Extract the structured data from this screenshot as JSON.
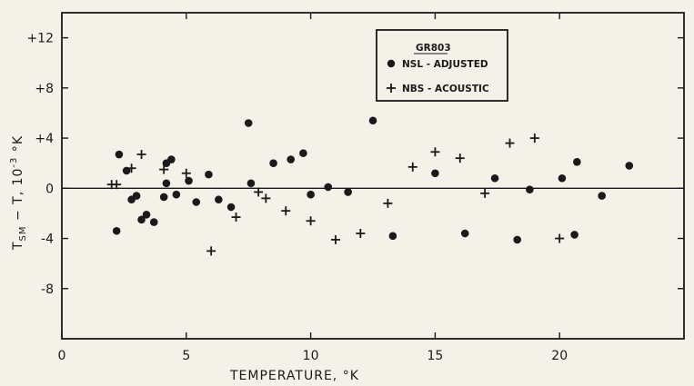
{
  "chart_data": {
    "type": "scatter",
    "title": "",
    "xlabel": "TEMPERATURE, °K",
    "ylabel": "T_SM − T, 10⁻³ °K",
    "xlim": [
      0,
      25
    ],
    "ylim": [
      -12,
      14
    ],
    "xticks": [
      0,
      5,
      10,
      15,
      20
    ],
    "xtick_labels": [
      "0",
      "5",
      "10",
      "15",
      "20"
    ],
    "yticks": [
      12,
      8,
      4,
      0,
      -4,
      -8
    ],
    "ytick_labels": [
      "+12",
      "+8",
      "+4",
      "0",
      "-4",
      "-8"
    ],
    "grid": false,
    "zero_line": true,
    "legend": {
      "title": "GR803",
      "placement": "top-center",
      "entries": [
        "NSL - ADJUSTED",
        "NBS - ACOUSTIC"
      ]
    },
    "series": [
      {
        "name": "NSL - ADJUSTED",
        "marker": "circle",
        "points": [
          [
            2.2,
            -3.4
          ],
          [
            2.3,
            2.7
          ],
          [
            2.6,
            1.4
          ],
          [
            2.8,
            -0.9
          ],
          [
            3.0,
            -0.6
          ],
          [
            3.2,
            -2.5
          ],
          [
            3.4,
            -2.1
          ],
          [
            3.7,
            -2.7
          ],
          [
            4.1,
            -0.7
          ],
          [
            4.2,
            0.4
          ],
          [
            4.2,
            2.0
          ],
          [
            4.4,
            2.3
          ],
          [
            4.6,
            -0.5
          ],
          [
            5.1,
            0.6
          ],
          [
            5.4,
            -1.1
          ],
          [
            5.9,
            1.1
          ],
          [
            6.3,
            -0.9
          ],
          [
            6.8,
            -1.5
          ],
          [
            7.5,
            5.2
          ],
          [
            7.6,
            0.4
          ],
          [
            8.5,
            2.0
          ],
          [
            9.2,
            2.3
          ],
          [
            9.7,
            2.8
          ],
          [
            10.0,
            -0.5
          ],
          [
            10.7,
            0.1
          ],
          [
            11.5,
            -0.3
          ],
          [
            12.5,
            5.4
          ],
          [
            13.3,
            -3.8
          ],
          [
            15.0,
            1.2
          ],
          [
            16.2,
            -3.6
          ],
          [
            17.4,
            0.8
          ],
          [
            18.3,
            -4.1
          ],
          [
            18.8,
            -0.1
          ],
          [
            20.1,
            0.8
          ],
          [
            20.6,
            -3.7
          ],
          [
            20.7,
            2.1
          ],
          [
            21.7,
            -0.6
          ],
          [
            22.8,
            1.8
          ]
        ]
      },
      {
        "name": "NBS - ACOUSTIC",
        "marker": "plus",
        "points": [
          [
            2.0,
            0.3
          ],
          [
            2.2,
            0.3
          ],
          [
            2.8,
            1.6
          ],
          [
            3.2,
            2.7
          ],
          [
            4.1,
            1.5
          ],
          [
            5.0,
            1.2
          ],
          [
            6.0,
            -5.0
          ],
          [
            7.0,
            -2.3
          ],
          [
            7.9,
            -0.3
          ],
          [
            8.2,
            -0.8
          ],
          [
            9.0,
            -1.8
          ],
          [
            10.0,
            -2.6
          ],
          [
            11.0,
            -4.1
          ],
          [
            12.0,
            -3.6
          ],
          [
            13.1,
            -1.2
          ],
          [
            14.1,
            1.7
          ],
          [
            15.0,
            2.9
          ],
          [
            16.0,
            2.4
          ],
          [
            17.0,
            -0.4
          ],
          [
            18.0,
            3.6
          ],
          [
            19.0,
            4.0
          ],
          [
            20.0,
            -4.0
          ]
        ]
      }
    ]
  }
}
